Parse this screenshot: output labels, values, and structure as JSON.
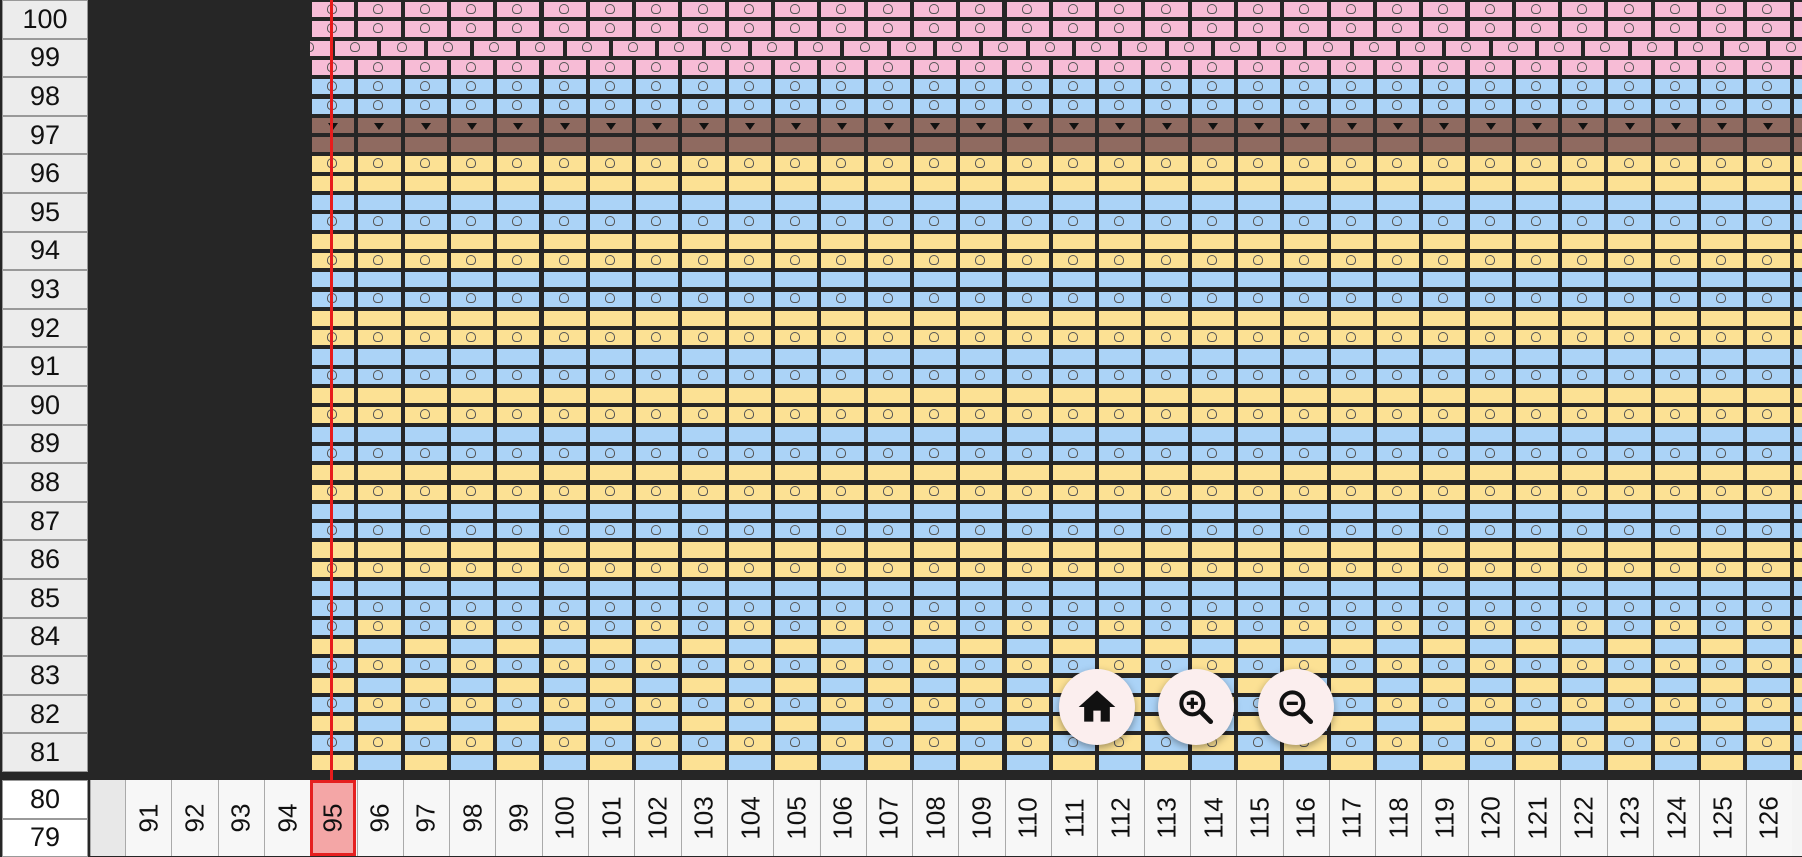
{
  "row_headers": [
    {
      "label": "100",
      "style": "gray"
    },
    {
      "label": "99",
      "style": "gray"
    },
    {
      "label": "98",
      "style": "gray"
    },
    {
      "label": "97",
      "style": "gray"
    },
    {
      "label": "96",
      "style": "gray"
    },
    {
      "label": "95",
      "style": "gray"
    },
    {
      "label": "94",
      "style": "gray"
    },
    {
      "label": "93",
      "style": "gray"
    },
    {
      "label": "92",
      "style": "gray"
    },
    {
      "label": "91",
      "style": "gray"
    },
    {
      "label": "90",
      "style": "gray"
    },
    {
      "label": "89",
      "style": "gray"
    },
    {
      "label": "88",
      "style": "gray"
    },
    {
      "label": "87",
      "style": "gray"
    },
    {
      "label": "86",
      "style": "gray"
    },
    {
      "label": "85",
      "style": "gray"
    },
    {
      "label": "84",
      "style": "gray"
    },
    {
      "label": "83",
      "style": "gray"
    },
    {
      "label": "82",
      "style": "gray"
    },
    {
      "label": "81",
      "style": "gray"
    },
    {
      "label": "80",
      "style": "white"
    },
    {
      "label": "79",
      "style": "white"
    }
  ],
  "column_headers": [
    "",
    "91",
    "92",
    "93",
    "94",
    "95",
    "96",
    "97",
    "98",
    "99",
    "100",
    "101",
    "102",
    "103",
    "104",
    "105",
    "106",
    "107",
    "108",
    "109",
    "110",
    "111",
    "112",
    "113",
    "114",
    "115",
    "116",
    "117",
    "118",
    "119",
    "120",
    "121",
    "122",
    "123",
    "124",
    "125",
    "126"
  ],
  "selected_column": "95",
  "colors": {
    "pink": "#f7bcd6",
    "blue": "#abd3f7",
    "yellow": "#fce194",
    "brown": "#8f6a60",
    "selection": "#e52020"
  },
  "fabs": {
    "home": "home-icon",
    "zoom_in": "zoom-in-icon",
    "zoom_out": "zoom-out-icon"
  }
}
